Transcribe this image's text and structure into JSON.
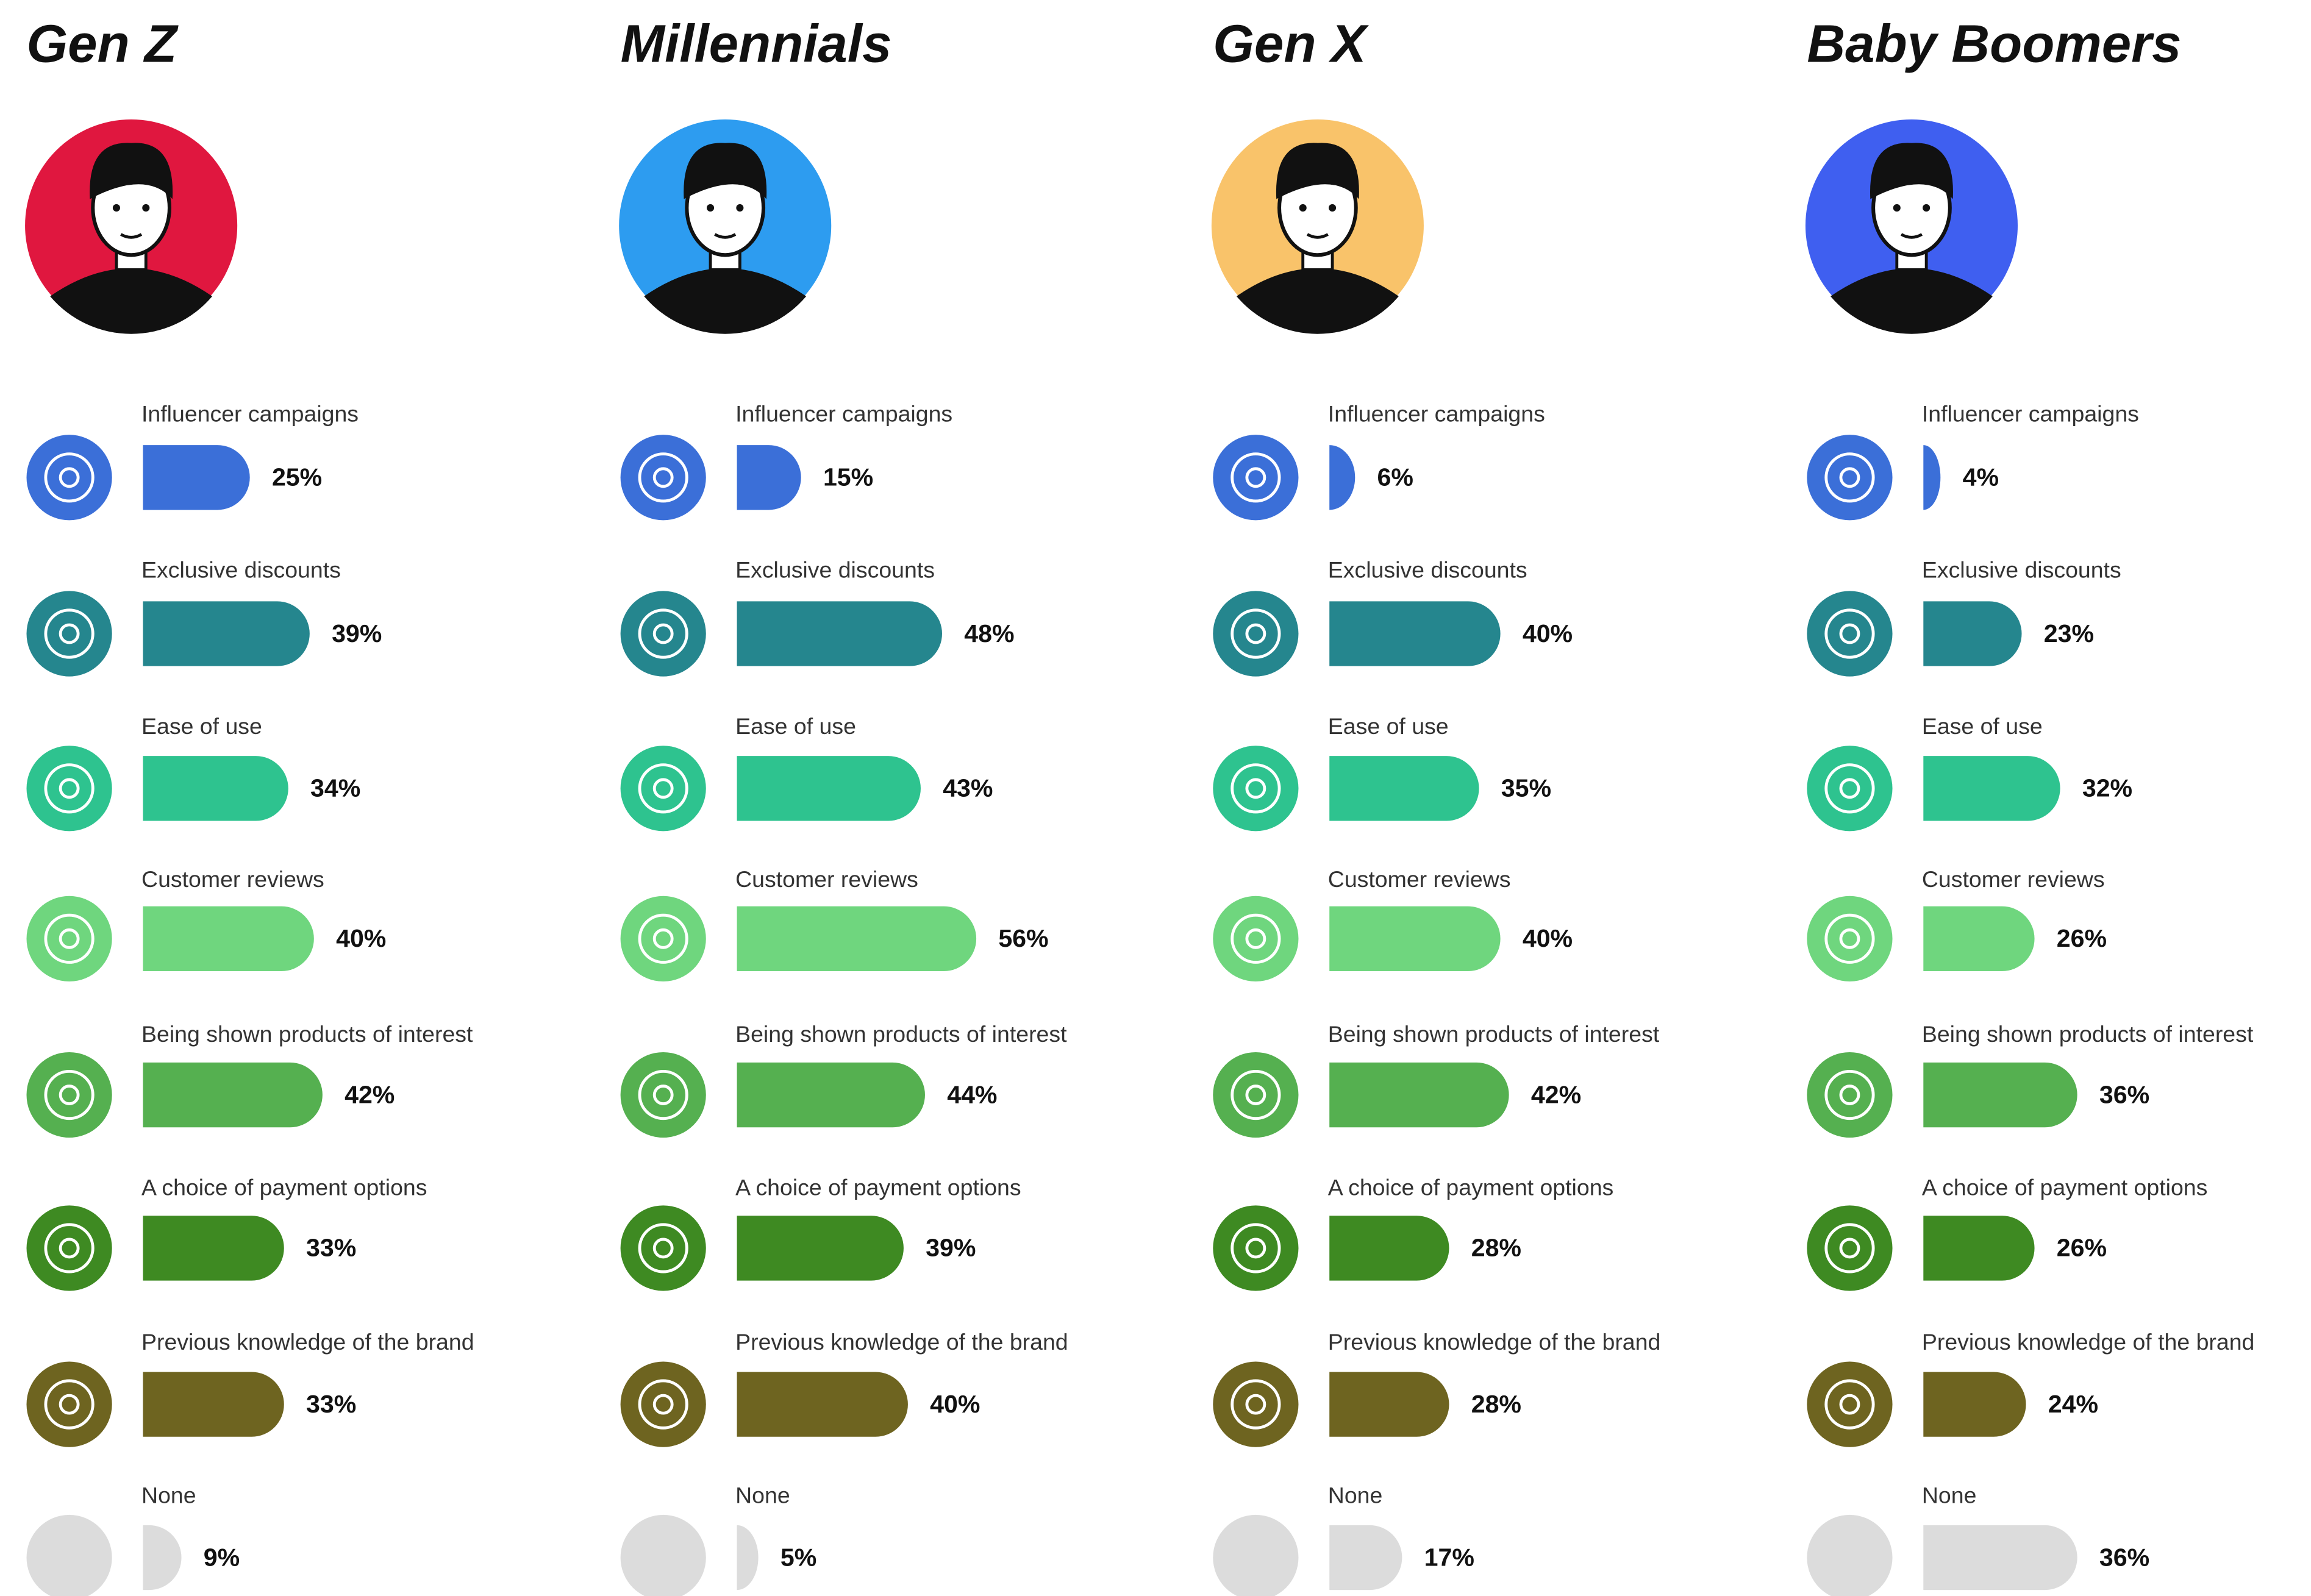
{
  "chart_data": [
    {
      "type": "bar",
      "title": "Gen Z",
      "avatar_color": "#e0173f",
      "categories": [
        "Influencer campaigns",
        "Exclusive discounts",
        "Ease of use",
        "Customer reviews",
        "Being shown products of interest",
        "A choice of payment options",
        "Previous knowledge of the brand",
        "None"
      ],
      "values": [
        25,
        39,
        34,
        40,
        42,
        33,
        33,
        9
      ],
      "value_labels": [
        "25%",
        "39%",
        "34%",
        "40%",
        "42%",
        "33%",
        "33%",
        "9%"
      ],
      "colors": [
        "#3b6fd8",
        "#25868e",
        "#2ec38f",
        "#6fd67e",
        "#55b050",
        "#3e8a22",
        "#6e6420",
        "#dcdcdc"
      ]
    },
    {
      "type": "bar",
      "title": "Millennials",
      "avatar_color": "#2d9cf0",
      "categories": [
        "Influencer campaigns",
        "Exclusive discounts",
        "Ease of use",
        "Customer reviews",
        "Being shown products of interest",
        "A choice of payment options",
        "Previous knowledge of the brand",
        "None"
      ],
      "values": [
        15,
        48,
        43,
        56,
        44,
        39,
        40,
        5
      ],
      "value_labels": [
        "15%",
        "48%",
        "43%",
        "56%",
        "44%",
        "39%",
        "40%",
        "5%"
      ],
      "colors": [
        "#3b6fd8",
        "#25868e",
        "#2ec38f",
        "#6fd67e",
        "#55b050",
        "#3e8a22",
        "#6e6420",
        "#dcdcdc"
      ]
    },
    {
      "type": "bar",
      "title": "Gen X",
      "avatar_color": "#f9c36a",
      "categories": [
        "Influencer campaigns",
        "Exclusive discounts",
        "Ease of use",
        "Customer reviews",
        "Being shown products of interest",
        "A choice of payment options",
        "Previous knowledge of the brand",
        "None"
      ],
      "values": [
        6,
        40,
        35,
        40,
        42,
        28,
        28,
        17
      ],
      "value_labels": [
        "6%",
        "40%",
        "35%",
        "40%",
        "42%",
        "28%",
        "28%",
        "17%"
      ],
      "colors": [
        "#3b6fd8",
        "#25868e",
        "#2ec38f",
        "#6fd67e",
        "#55b050",
        "#3e8a22",
        "#6e6420",
        "#dcdcdc"
      ]
    },
    {
      "type": "bar",
      "title": "Baby Boomers",
      "avatar_color": "#3f5ff0",
      "categories": [
        "Influencer campaigns",
        "Exclusive discounts",
        "Ease of use",
        "Customer reviews",
        "Being shown products of interest",
        "A choice of payment options",
        "Previous knowledge of the brand",
        "None"
      ],
      "values": [
        4,
        23,
        32,
        26,
        36,
        26,
        24,
        36
      ],
      "value_labels": [
        "4%",
        "23%",
        "32%",
        "26%",
        "36%",
        "26%",
        "24%",
        "36%"
      ],
      "colors": [
        "#3b6fd8",
        "#25868e",
        "#2ec38f",
        "#6fd67e",
        "#55b050",
        "#3e8a22",
        "#6e6420",
        "#dcdcdc"
      ]
    }
  ]
}
